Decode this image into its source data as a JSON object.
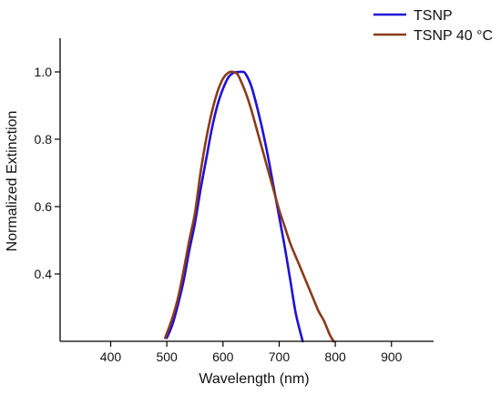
{
  "chart_data": {
    "type": "line",
    "title": "",
    "xlabel": "Wavelength (nm)",
    "ylabel": "Normalized Extinction",
    "xlim": [
      310,
      975
    ],
    "ylim": [
      0.2,
      1.1
    ],
    "x_ticks": [
      400,
      500,
      600,
      700,
      800,
      900
    ],
    "y_ticks": [
      0.4,
      0.6,
      0.8,
      1.0
    ],
    "x_tick_labels": [
      "400",
      "500",
      "600",
      "700",
      "800",
      "900"
    ],
    "y_tick_labels": [
      "0.4",
      "0.6",
      "0.8",
      "1.0"
    ],
    "grid": false,
    "legend_position": "top-right, outside plot area",
    "series": [
      {
        "name": "TSNP",
        "color": "#1f10d8",
        "points": [
          [
            500,
            0.21
          ],
          [
            510,
            0.25
          ],
          [
            520,
            0.31
          ],
          [
            530,
            0.38
          ],
          [
            540,
            0.47
          ],
          [
            550,
            0.55
          ],
          [
            560,
            0.65
          ],
          [
            570,
            0.74
          ],
          [
            580,
            0.83
          ],
          [
            590,
            0.9
          ],
          [
            600,
            0.95
          ],
          [
            610,
            0.985
          ],
          [
            620,
            0.998
          ],
          [
            630,
            1.0
          ],
          [
            635,
            1.0
          ],
          [
            640,
            0.995
          ],
          [
            650,
            0.96
          ],
          [
            660,
            0.9
          ],
          [
            670,
            0.83
          ],
          [
            680,
            0.75
          ],
          [
            690,
            0.66
          ],
          [
            700,
            0.57
          ],
          [
            710,
            0.48
          ],
          [
            720,
            0.38
          ],
          [
            730,
            0.28
          ],
          [
            742,
            0.2
          ]
        ]
      },
      {
        "name": "TSNP 40 °C",
        "color": "#8a3a1a",
        "points": [
          [
            497,
            0.21
          ],
          [
            510,
            0.27
          ],
          [
            520,
            0.33
          ],
          [
            530,
            0.41
          ],
          [
            540,
            0.5
          ],
          [
            550,
            0.58
          ],
          [
            560,
            0.7
          ],
          [
            570,
            0.8
          ],
          [
            580,
            0.88
          ],
          [
            590,
            0.94
          ],
          [
            600,
            0.98
          ],
          [
            610,
            0.998
          ],
          [
            618,
            1.0
          ],
          [
            625,
            0.995
          ],
          [
            630,
            0.98
          ],
          [
            640,
            0.94
          ],
          [
            650,
            0.89
          ],
          [
            660,
            0.83
          ],
          [
            670,
            0.77
          ],
          [
            680,
            0.71
          ],
          [
            690,
            0.65
          ],
          [
            700,
            0.59
          ],
          [
            710,
            0.54
          ],
          [
            720,
            0.49
          ],
          [
            730,
            0.45
          ],
          [
            740,
            0.41
          ],
          [
            750,
            0.37
          ],
          [
            760,
            0.33
          ],
          [
            770,
            0.29
          ],
          [
            780,
            0.26
          ],
          [
            790,
            0.22
          ],
          [
            797,
            0.2
          ]
        ]
      }
    ]
  }
}
